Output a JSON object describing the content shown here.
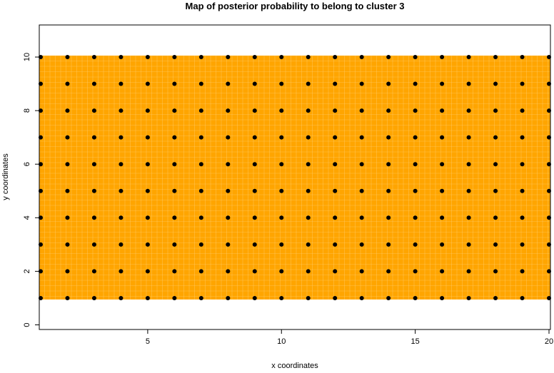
{
  "chart_data": {
    "type": "heatmap",
    "title": "Map of posterior probability to belong to cluster  3",
    "xlabel": "x coordinates",
    "ylabel": "y coordinates",
    "xlim": [
      1,
      20
    ],
    "ylim": [
      0,
      11
    ],
    "x_ticks": [
      5,
      10,
      15,
      20
    ],
    "y_ticks": [
      0,
      2,
      4,
      6,
      8,
      10
    ],
    "fill_color": "#FFA500",
    "fill_region": {
      "x": [
        1,
        20
      ],
      "y": [
        1,
        10
      ]
    },
    "points": {
      "x": [
        1,
        2,
        3,
        4,
        5,
        6,
        7,
        8,
        9,
        10,
        11,
        12,
        13,
        14,
        15,
        16,
        17,
        18,
        19,
        20
      ],
      "y": [
        1,
        2,
        3,
        4,
        5,
        6,
        7,
        8,
        9,
        10
      ],
      "color": "#000000"
    },
    "grid": false
  }
}
